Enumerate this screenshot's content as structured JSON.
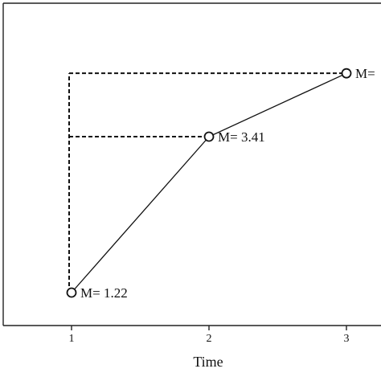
{
  "chart_data": {
    "type": "line",
    "title": "",
    "xlabel": "Time",
    "ylabel": "",
    "x": [
      1,
      2,
      3
    ],
    "x_tick_labels": [
      "1",
      "2",
      "3"
    ],
    "series": [
      {
        "values": [
          1.22,
          3.41,
          4.3
        ],
        "point_labels": [
          "M= 1.22",
          "M= 3.41",
          "M="
        ]
      }
    ],
    "reference_lines": "dashed guides from each point to the vertical level of the first time point",
    "grid": false,
    "legend": "none",
    "colors": {
      "line": "#111111",
      "axis": "#222222",
      "marker_fill": "#ffffff"
    }
  }
}
